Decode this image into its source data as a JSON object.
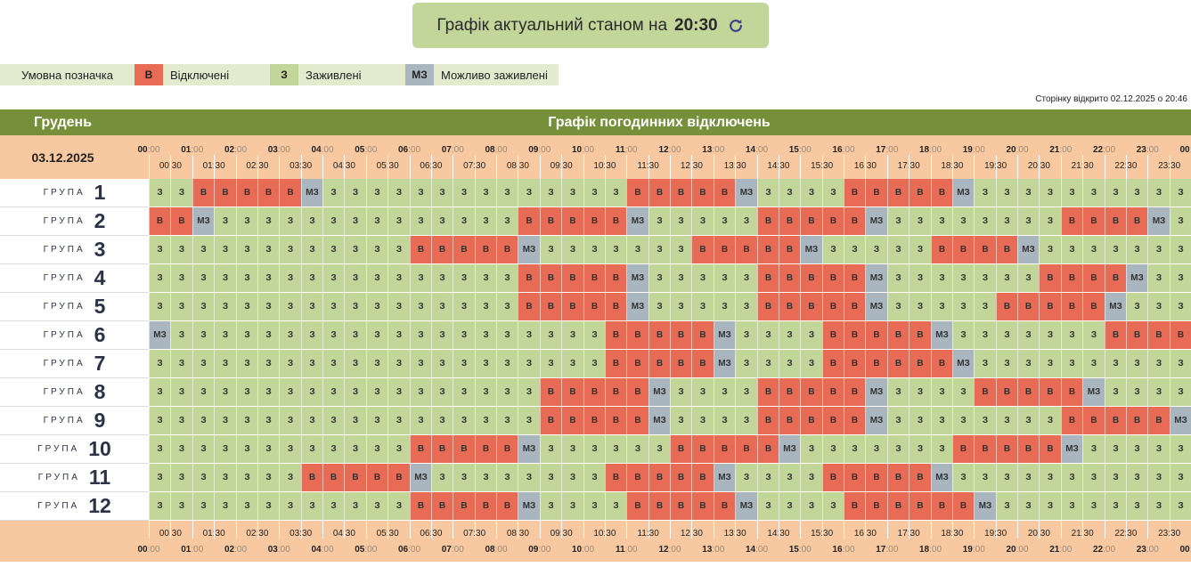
{
  "banner": {
    "text": "Графік актуальний станом на",
    "time": "20:30"
  },
  "legend": {
    "title": "Умовна позначка",
    "items": [
      {
        "code": "В",
        "label": "Відключені",
        "color": "#e86b55"
      },
      {
        "code": "З",
        "label": "Заживлені",
        "color": "#c3d699"
      },
      {
        "code": "МЗ",
        "label": "Можливо заживлені",
        "color": "#a9b6bf"
      }
    ]
  },
  "opened_text": "Сторінку відкрито 02.12.2025 о 20:46",
  "header": {
    "month": "Грудень",
    "title": "Графік погодинних відключень"
  },
  "date": "03.12.2025",
  "hours": [
    "00",
    "01",
    "02",
    "03",
    "04",
    "05",
    "06",
    "07",
    "08",
    "09",
    "10",
    "11",
    "12",
    "13",
    "14",
    "15",
    "16",
    "17",
    "18",
    "19",
    "20",
    "21",
    "22",
    "23",
    "00"
  ],
  "minute_zero": ":00",
  "half_ticks": [
    "00:30",
    "01:30",
    "02:30",
    "03:30",
    "04:30",
    "05:30",
    "06:30",
    "07:30",
    "08:30",
    "09:30",
    "10:30",
    "11:30",
    "12:30",
    "13:30",
    "14:30",
    "15:30",
    "16:30",
    "17:30",
    "18:30",
    "19:30",
    "20:30",
    "21:30",
    "22:30",
    "23:30"
  ],
  "group_word": "ГРУПА",
  "colors": {
    "В": "#e86b55",
    "З": "#c3d699",
    "МЗ": "#a9b6bf"
  },
  "groups": [
    {
      "n": "1",
      "slots": [
        "З",
        "З",
        "В",
        "В",
        "В",
        "В",
        "В",
        "МЗ",
        "З",
        "З",
        "З",
        "З",
        "З",
        "З",
        "З",
        "З",
        "З",
        "З",
        "З",
        "З",
        "З",
        "З",
        "В",
        "В",
        "В",
        "В",
        "В",
        "МЗ",
        "З",
        "З",
        "З",
        "З",
        "В",
        "В",
        "В",
        "В",
        "В",
        "МЗ",
        "З",
        "З",
        "З",
        "З",
        "З",
        "З",
        "З",
        "З",
        "З",
        "З"
      ]
    },
    {
      "n": "2",
      "slots": [
        "В",
        "В",
        "МЗ",
        "З",
        "З",
        "З",
        "З",
        "З",
        "З",
        "З",
        "З",
        "З",
        "З",
        "З",
        "З",
        "З",
        "З",
        "В",
        "В",
        "В",
        "В",
        "В",
        "МЗ",
        "З",
        "З",
        "З",
        "З",
        "З",
        "В",
        "В",
        "В",
        "В",
        "В",
        "МЗ",
        "З",
        "З",
        "З",
        "З",
        "З",
        "З",
        "З",
        "З",
        "В",
        "В",
        "В",
        "В",
        "МЗ",
        "З"
      ]
    },
    {
      "n": "3",
      "slots": [
        "З",
        "З",
        "З",
        "З",
        "З",
        "З",
        "З",
        "З",
        "З",
        "З",
        "З",
        "З",
        "В",
        "В",
        "В",
        "В",
        "В",
        "МЗ",
        "З",
        "З",
        "З",
        "З",
        "З",
        "З",
        "З",
        "В",
        "В",
        "В",
        "В",
        "В",
        "МЗ",
        "З",
        "З",
        "З",
        "З",
        "З",
        "В",
        "В",
        "В",
        "В",
        "МЗ",
        "З",
        "З",
        "З",
        "З",
        "З",
        "З",
        "З"
      ]
    },
    {
      "n": "4",
      "slots": [
        "З",
        "З",
        "З",
        "З",
        "З",
        "З",
        "З",
        "З",
        "З",
        "З",
        "З",
        "З",
        "З",
        "З",
        "З",
        "З",
        "З",
        "В",
        "В",
        "В",
        "В",
        "В",
        "МЗ",
        "З",
        "З",
        "З",
        "З",
        "З",
        "В",
        "В",
        "В",
        "В",
        "В",
        "МЗ",
        "З",
        "З",
        "З",
        "З",
        "З",
        "З",
        "З",
        "В",
        "В",
        "В",
        "В",
        "МЗ",
        "З",
        "З"
      ]
    },
    {
      "n": "5",
      "slots": [
        "З",
        "З",
        "З",
        "З",
        "З",
        "З",
        "З",
        "З",
        "З",
        "З",
        "З",
        "З",
        "З",
        "З",
        "З",
        "З",
        "З",
        "В",
        "В",
        "В",
        "В",
        "В",
        "МЗ",
        "З",
        "З",
        "З",
        "З",
        "З",
        "В",
        "В",
        "В",
        "В",
        "В",
        "МЗ",
        "З",
        "З",
        "З",
        "З",
        "З",
        "В",
        "В",
        "В",
        "В",
        "В",
        "МЗ",
        "З",
        "З",
        "З"
      ]
    },
    {
      "n": "6",
      "slots": [
        "МЗ",
        "З",
        "З",
        "З",
        "З",
        "З",
        "З",
        "З",
        "З",
        "З",
        "З",
        "З",
        "З",
        "З",
        "З",
        "З",
        "З",
        "З",
        "З",
        "З",
        "З",
        "В",
        "В",
        "В",
        "В",
        "В",
        "МЗ",
        "З",
        "З",
        "З",
        "З",
        "В",
        "В",
        "В",
        "В",
        "В",
        "МЗ",
        "З",
        "З",
        "З",
        "З",
        "З",
        "З",
        "З",
        "В",
        "В",
        "В",
        "В"
      ]
    },
    {
      "n": "7",
      "slots": [
        "З",
        "З",
        "З",
        "З",
        "З",
        "З",
        "З",
        "З",
        "З",
        "З",
        "З",
        "З",
        "З",
        "З",
        "З",
        "З",
        "З",
        "З",
        "З",
        "З",
        "З",
        "В",
        "В",
        "В",
        "В",
        "В",
        "МЗ",
        "З",
        "З",
        "З",
        "З",
        "В",
        "В",
        "В",
        "В",
        "В",
        "В",
        "МЗ",
        "З",
        "З",
        "З",
        "З",
        "З",
        "З",
        "З",
        "З",
        "З",
        "З"
      ]
    },
    {
      "n": "8",
      "slots": [
        "З",
        "З",
        "З",
        "З",
        "З",
        "З",
        "З",
        "З",
        "З",
        "З",
        "З",
        "З",
        "З",
        "З",
        "З",
        "З",
        "З",
        "З",
        "В",
        "В",
        "В",
        "В",
        "В",
        "МЗ",
        "З",
        "З",
        "З",
        "З",
        "В",
        "В",
        "В",
        "В",
        "В",
        "МЗ",
        "З",
        "З",
        "З",
        "З",
        "В",
        "В",
        "В",
        "В",
        "В",
        "МЗ",
        "З",
        "З",
        "З",
        "З"
      ]
    },
    {
      "n": "9",
      "slots": [
        "З",
        "З",
        "З",
        "З",
        "З",
        "З",
        "З",
        "З",
        "З",
        "З",
        "З",
        "З",
        "З",
        "З",
        "З",
        "З",
        "З",
        "З",
        "В",
        "В",
        "В",
        "В",
        "В",
        "МЗ",
        "З",
        "З",
        "З",
        "З",
        "В",
        "В",
        "В",
        "В",
        "В",
        "МЗ",
        "З",
        "З",
        "З",
        "З",
        "З",
        "З",
        "З",
        "З",
        "В",
        "В",
        "В",
        "В",
        "В",
        "МЗ"
      ]
    },
    {
      "n": "10",
      "slots": [
        "З",
        "З",
        "З",
        "З",
        "З",
        "З",
        "З",
        "З",
        "З",
        "З",
        "З",
        "З",
        "В",
        "В",
        "В",
        "В",
        "В",
        "МЗ",
        "З",
        "З",
        "З",
        "З",
        "З",
        "З",
        "В",
        "В",
        "В",
        "В",
        "В",
        "МЗ",
        "З",
        "З",
        "З",
        "З",
        "З",
        "З",
        "З",
        "В",
        "В",
        "В",
        "В",
        "В",
        "МЗ",
        "З",
        "З",
        "З",
        "З",
        "З"
      ]
    },
    {
      "n": "11",
      "slots": [
        "З",
        "З",
        "З",
        "З",
        "З",
        "З",
        "З",
        "В",
        "В",
        "В",
        "В",
        "В",
        "МЗ",
        "З",
        "З",
        "З",
        "З",
        "З",
        "З",
        "З",
        "З",
        "В",
        "В",
        "В",
        "В",
        "В",
        "МЗ",
        "З",
        "З",
        "З",
        "З",
        "В",
        "В",
        "В",
        "В",
        "В",
        "МЗ",
        "З",
        "З",
        "З",
        "З",
        "З",
        "З",
        "З",
        "З",
        "З",
        "З",
        "З"
      ]
    },
    {
      "n": "12",
      "slots": [
        "З",
        "З",
        "З",
        "З",
        "З",
        "З",
        "З",
        "З",
        "З",
        "З",
        "З",
        "З",
        "В",
        "В",
        "В",
        "В",
        "В",
        "МЗ",
        "З",
        "З",
        "З",
        "З",
        "В",
        "В",
        "В",
        "В",
        "В",
        "МЗ",
        "З",
        "З",
        "З",
        "З",
        "В",
        "В",
        "В",
        "В",
        "В",
        "В",
        "МЗ",
        "З",
        "З",
        "З",
        "З",
        "З",
        "З",
        "З",
        "З",
        "З"
      ]
    }
  ]
}
